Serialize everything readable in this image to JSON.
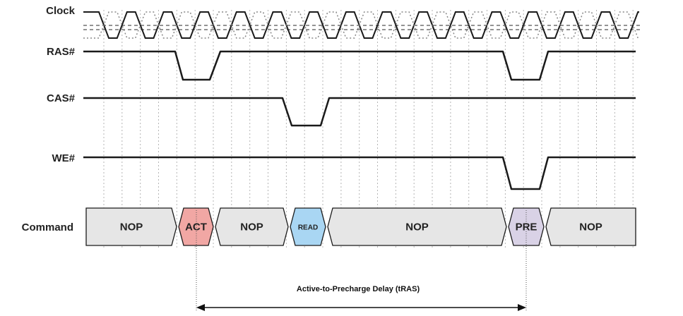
{
  "signals": {
    "clock": "Clock",
    "ras": "RAS#",
    "cas": "CAS#",
    "we": "WE#",
    "command": "Command"
  },
  "commands": [
    {
      "label": "NOP",
      "type": "nop"
    },
    {
      "label": "ACT",
      "type": "act"
    },
    {
      "label": "NOP",
      "type": "nop"
    },
    {
      "label": "READ",
      "type": "read"
    },
    {
      "label": "NOP",
      "type": "nop"
    },
    {
      "label": "PRE",
      "type": "pre"
    },
    {
      "label": "NOP",
      "type": "nop"
    }
  ],
  "annotation": {
    "label": "Active-to-Precharge Delay (tRAS)"
  },
  "colors": {
    "nop": "#e6e6e6",
    "act": "#f1a7a4",
    "read": "#a9d6f3",
    "pre": "#d9d2e6",
    "line": "#1a1a1a",
    "grid": "#b5b5b5"
  }
}
